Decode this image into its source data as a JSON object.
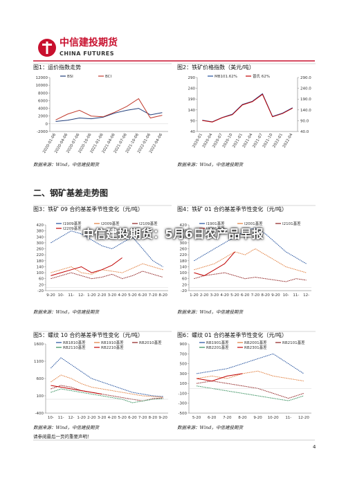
{
  "header": {
    "logo_cn": "中信建投期货",
    "logo_en": "CHINA FUTURES"
  },
  "overlay_title": "中信建投期货：5月6日农产品早报",
  "section_heading": "二、钢矿基差走势图",
  "footer": "请参阅最后一页的重要声明！",
  "page_number": "4",
  "chart_data": [
    {
      "type": "line",
      "title": "图1：运价指数走势",
      "source": "数据来源：Wind，中信建投期货",
      "categories": [
        "2020-01-06",
        "2020-04-06",
        "2020-07-06",
        "2020-10-06",
        "2021-01-06",
        "2021-04-06",
        "2021-07-06",
        "2021-10-06",
        "2022-01-06",
        "2022-04-06"
      ],
      "series": [
        {
          "name": "BSI",
          "color": "#1f3d7a",
          "values": [
            600,
            900,
            1500,
            1300,
            1700,
            2800,
            3500,
            4000,
            2300,
            2900
          ]
        },
        {
          "name": "BCI",
          "color": "#c0392b",
          "values": [
            1000,
            2500,
            3500,
            2000,
            1800,
            3000,
            4500,
            6500,
            1500,
            2200
          ]
        }
      ],
      "ylim": [
        -2000,
        12000
      ],
      "yticks": [
        -2000,
        0,
        2000,
        4000,
        6000,
        8000,
        10000,
        12000
      ]
    },
    {
      "type": "line",
      "title": "图2：铁矿价格指数（美元/吨）",
      "source": "数据来源：Wind，中信建投期货",
      "categories": [
        "2020-01",
        "2020-04",
        "2020-07",
        "2020-10",
        "2021-01",
        "2021-04",
        "2021-07",
        "2021-10",
        "2022-01",
        "2022-04"
      ],
      "series": [
        {
          "name": "MB101.62%",
          "color": "#1f4e9c",
          "values": [
            92,
            85,
            105,
            120,
            165,
            180,
            215,
            110,
            125,
            150
          ]
        },
        {
          "name": "普氏 62%",
          "color": "#c00000",
          "values": [
            91,
            84,
            104,
            118,
            163,
            178,
            212,
            108,
            123,
            148
          ]
        }
      ],
      "ylim": [
        40,
        290
      ],
      "yticks": [
        40,
        90,
        140,
        190,
        240,
        290
      ],
      "y2lim": [
        40,
        290
      ],
      "y2ticks": [
        {
          "value": 40,
          "label": "40.0"
        },
        {
          "value": 90,
          "label": "90.0"
        },
        {
          "value": 140,
          "label": "140.0"
        },
        {
          "value": 190,
          "label": "190.0"
        },
        {
          "value": 240,
          "label": "240.0"
        },
        {
          "value": 290,
          "label": "290.0"
        }
      ]
    },
    {
      "type": "line",
      "title": "图3：铁矿 09 合约基差季节性变化（元/吨）",
      "source": "数据来源：Wind，中信建投期货",
      "categories": [
        "9-20",
        "10-",
        "11-",
        "12-",
        "1-20",
        "2-20",
        "3-20",
        "4-20",
        "5-20",
        "6-20",
        "7-20",
        "8-20"
      ],
      "series": [
        {
          "name": "I1909基差",
          "color": "#1f4e9c",
          "dashed": true,
          "values": [
            300,
            340,
            380,
            360,
            320,
            280,
            260,
            300,
            340,
            260,
            180,
            140
          ]
        },
        {
          "name": "I2009基差",
          "color": "#e07b39",
          "dashed": true,
          "values": [
            100,
            120,
            140,
            100,
            90,
            120,
            110,
            100,
            130,
            160,
            140,
            120
          ]
        },
        {
          "name": "I2109基差",
          "color": "#8b1a1a",
          "dashed": true,
          "values": [
            60,
            80,
            100,
            80,
            60,
            70,
            90,
            60,
            80,
            110,
            90,
            70
          ]
        },
        {
          "name": "I2209基差",
          "color": "#c00000",
          "values": [
            80,
            100,
            120,
            140,
            100,
            120,
            150,
            200,
            null,
            null,
            null,
            null
          ]
        }
      ],
      "ylim": [
        -20,
        420
      ],
      "yticks": [
        -20,
        20,
        60,
        100,
        140,
        180,
        220,
        260,
        300,
        340,
        380,
        420
      ]
    },
    {
      "type": "line",
      "title": "图4：铁矿 01 合约基差季节性变化（元/吨）",
      "source": "数据来源：Wind，中信建投期货",
      "categories": [
        "1-20",
        "2-20",
        "3-20",
        "4-20",
        "5-20",
        "6-20",
        "7-20",
        "8-20",
        "9-20",
        "10-",
        "11-",
        "12-"
      ],
      "series": [
        {
          "name": "I1901基差",
          "color": "#1f4e9c",
          "dashed": true,
          "values": [
            180,
            220,
            260,
            300,
            340,
            380,
            400,
            360,
            300,
            240,
            200,
            160
          ]
        },
        {
          "name": "I2001基差",
          "color": "#e07b39",
          "dashed": true,
          "values": [
            120,
            140,
            160,
            200,
            240,
            220,
            260,
            220,
            180,
            140,
            120,
            100
          ]
        },
        {
          "name": "I2101基差",
          "color": "#8b1a1a",
          "dashed": true,
          "values": [
            60,
            80,
            90,
            100,
            80,
            60,
            70,
            60,
            50,
            40,
            60,
            50
          ]
        },
        {
          "name": "I2201基差",
          "color": "#c00000",
          "values": [
            100,
            80,
            120,
            160,
            240,
            null,
            null,
            null,
            null,
            null,
            null,
            null
          ]
        }
      ],
      "ylim": [
        -20,
        420
      ],
      "yticks": [
        -20,
        20,
        60,
        100,
        140,
        180,
        220,
        260,
        300,
        340,
        380,
        420
      ]
    },
    {
      "type": "line",
      "title": "图5：螺纹 10 合约基差季节性变化（元/吨）",
      "source": "数据来源：Wind，中信建投期货",
      "categories": [
        "10-",
        "11-",
        "12-",
        "1-20",
        "2-20",
        "3-20",
        "4-20",
        "5-20",
        "6-20",
        "7-20",
        "8-20",
        "9-20"
      ],
      "series": [
        {
          "name": "RB1810基差",
          "color": "#1f4e9c",
          "dashed": true,
          "values": [
            900,
            1200,
            1000,
            800,
            600,
            500,
            400,
            300,
            200,
            150,
            100,
            80
          ]
        },
        {
          "name": "RB1910基差",
          "color": "#e07b39",
          "dashed": true,
          "values": [
            500,
            700,
            600,
            450,
            350,
            300,
            250,
            200,
            150,
            100,
            80,
            60
          ]
        },
        {
          "name": "RB2010基差",
          "color": "#8b1a1a",
          "dashed": true,
          "values": [
            300,
            400,
            350,
            250,
            200,
            150,
            100,
            50,
            0,
            -50,
            20,
            40
          ]
        },
        {
          "name": "RB2110基差",
          "color": "#2e8b57",
          "dashed": true,
          "values": [
            200,
            300,
            250,
            200,
            150,
            100,
            50,
            0,
            -100,
            -50,
            0,
            20
          ]
        },
        {
          "name": "RB2210基差",
          "color": "#c00000",
          "values": [
            400,
            350,
            300,
            250,
            200,
            150,
            null,
            null,
            null,
            null,
            null,
            null
          ]
        }
      ],
      "ylim": [
        -400,
        1600
      ],
      "yticks": [
        -400,
        100,
        600,
        1100,
        1600
      ]
    },
    {
      "type": "line",
      "title": "图6：螺纹 01 合约基差季节性变化（元/吨）",
      "source": "数据来源：Wind，中信建投期货",
      "categories": [
        "5-20",
        "6-20",
        "7-20",
        "8-20",
        "9-20",
        "10-20",
        "11-",
        "12-20"
      ],
      "series": [
        {
          "name": "RB1901基差",
          "color": "#1f4e9c",
          "dashed": true,
          "values": [
            300,
            350,
            400,
            500,
            600,
            700,
            500,
            300
          ]
        },
        {
          "name": "RB2001基差",
          "color": "#e07b39",
          "dashed": true,
          "values": [
            200,
            250,
            200,
            300,
            350,
            250,
            200,
            150
          ]
        },
        {
          "name": "RB2101基差",
          "color": "#8b1a1a",
          "dashed": true,
          "values": [
            100,
            150,
            100,
            50,
            0,
            -100,
            -200,
            -100
          ]
        },
        {
          "name": "RB2201基差",
          "color": "#2e8b57",
          "dashed": true,
          "values": [
            50,
            0,
            -50,
            -100,
            -150,
            -200,
            -250,
            -150
          ]
        },
        {
          "name": "RB2301基差",
          "color": "#c00000",
          "values": [
            200,
            150,
            250,
            300,
            null,
            null,
            null,
            null
          ]
        }
      ],
      "ylim": [
        -500,
        900
      ],
      "yticks": [
        -500,
        -300,
        -100,
        100,
        300,
        500,
        700,
        900
      ]
    }
  ]
}
